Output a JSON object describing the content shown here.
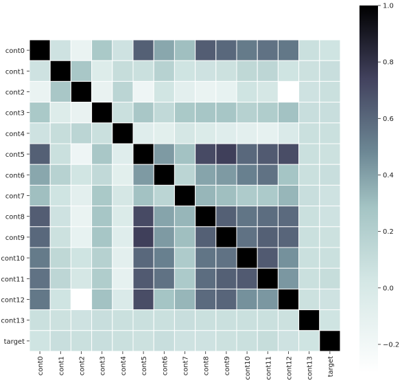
{
  "chart_data": {
    "type": "heatmap",
    "title": "",
    "xlabel": "",
    "ylabel": "",
    "labels": [
      "cont0",
      "cont1",
      "cont2",
      "cont3",
      "cont4",
      "cont5",
      "cont6",
      "cont7",
      "cont8",
      "cont9",
      "cont10",
      "cont11",
      "cont12",
      "cont13",
      "target"
    ],
    "matrix": [
      [
        1.0,
        0.06,
        -0.14,
        0.25,
        0.06,
        0.63,
        0.38,
        0.3,
        0.64,
        0.6,
        0.53,
        0.56,
        0.54,
        0.08,
        0.05
      ],
      [
        0.06,
        1.0,
        0.26,
        -0.04,
        0.1,
        0.08,
        0.18,
        0.05,
        0.06,
        0.07,
        0.14,
        0.15,
        0.05,
        0.07,
        0.09
      ],
      [
        -0.14,
        0.26,
        1.0,
        -0.13,
        0.16,
        -0.17,
        0.04,
        -0.09,
        -0.14,
        -0.12,
        0.05,
        0.02,
        -0.3,
        0.06,
        0.08
      ],
      [
        0.25,
        -0.04,
        -0.13,
        1.0,
        0.08,
        0.26,
        0.13,
        0.25,
        0.27,
        0.27,
        0.19,
        0.22,
        0.29,
        0.09,
        0.09
      ],
      [
        0.06,
        0.1,
        0.16,
        0.08,
        1.0,
        -0.06,
        -0.08,
        0.02,
        -0.03,
        -0.06,
        -0.09,
        -0.11,
        -0.02,
        0.08,
        0.08
      ],
      [
        0.63,
        0.08,
        -0.17,
        0.26,
        -0.06,
        1.0,
        0.42,
        0.29,
        0.71,
        0.75,
        0.6,
        0.65,
        0.7,
        0.08,
        0.07
      ],
      [
        0.38,
        0.18,
        0.04,
        0.13,
        -0.08,
        0.42,
        1.0,
        0.16,
        0.39,
        0.42,
        0.51,
        0.56,
        0.28,
        0.08,
        0.09
      ],
      [
        0.3,
        0.05,
        -0.09,
        0.25,
        0.02,
        0.29,
        0.16,
        1.0,
        0.33,
        0.3,
        0.23,
        0.24,
        0.33,
        0.09,
        0.06
      ],
      [
        0.64,
        0.06,
        -0.14,
        0.27,
        -0.03,
        0.71,
        0.39,
        0.33,
        1.0,
        0.63,
        0.55,
        0.58,
        0.59,
        0.08,
        0.06
      ],
      [
        0.6,
        0.07,
        -0.12,
        0.27,
        -0.06,
        0.75,
        0.42,
        0.3,
        0.63,
        1.0,
        0.56,
        0.63,
        0.61,
        0.08,
        0.07
      ],
      [
        0.53,
        0.14,
        0.05,
        0.19,
        -0.09,
        0.6,
        0.51,
        0.23,
        0.55,
        0.56,
        1.0,
        0.65,
        0.45,
        0.08,
        0.08
      ],
      [
        0.56,
        0.15,
        0.02,
        0.22,
        -0.11,
        0.65,
        0.56,
        0.24,
        0.58,
        0.63,
        0.65,
        1.0,
        0.43,
        0.08,
        0.1
      ],
      [
        0.54,
        0.05,
        -0.3,
        0.29,
        -0.02,
        0.7,
        0.28,
        0.33,
        0.59,
        0.61,
        0.45,
        0.43,
        1.0,
        0.07,
        0.06
      ],
      [
        0.08,
        0.07,
        0.06,
        0.09,
        0.08,
        0.08,
        0.08,
        0.09,
        0.08,
        0.08,
        0.08,
        0.08,
        0.07,
        1.0,
        0.05
      ],
      [
        0.05,
        0.09,
        0.08,
        0.09,
        0.08,
        0.07,
        0.09,
        0.06,
        0.06,
        0.07,
        0.08,
        0.1,
        0.06,
        0.05,
        1.0
      ]
    ],
    "colorbar": {
      "range": [
        -0.3,
        1.0
      ],
      "ticks": [
        -0.2,
        0.0,
        0.2,
        0.4,
        0.6,
        0.8,
        1.0
      ],
      "tick_labels": [
        "−0.2",
        "0.0",
        "0.2",
        "0.4",
        "0.6",
        "0.8",
        "1.0"
      ]
    },
    "colormap": "bone_r",
    "colors": {
      "low": "#ffffff",
      "mid1": "#a7c7c7",
      "mid2": "#535378",
      "high": "#000000",
      "cell_border": "#ffffff"
    },
    "grid": false,
    "legend": "colorbar-right"
  }
}
